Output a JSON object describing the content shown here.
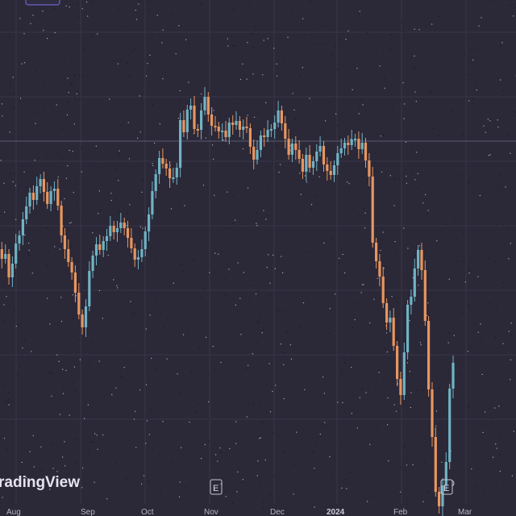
{
  "app": {
    "watermark": "radingView"
  },
  "chart_data": {
    "type": "candlestick",
    "x_labels": [
      "Aug",
      "Sep",
      "Oct",
      "Nov",
      "Dec",
      "2024",
      "Feb",
      "Mar"
    ],
    "highlight_label": "2024",
    "event_markers": [
      {
        "label": "E",
        "date": "Nov"
      },
      {
        "label": "E",
        "date": "Feb"
      }
    ],
    "colors": {
      "background": "#2b2838",
      "grid": "#3a3649",
      "up": "#6fb3c4",
      "down": "#e8965f",
      "crosshair": "#5a5870"
    },
    "grid": true,
    "ohlc_close_trend": [
      331,
      319,
      325,
      296,
      313,
      338,
      348,
      368,
      384,
      401,
      392,
      409,
      418,
      402,
      387,
      403,
      406,
      385,
      348,
      331,
      315,
      302,
      277,
      250,
      234,
      260,
      304,
      323,
      337,
      330,
      341,
      347,
      360,
      352,
      357,
      364,
      357,
      345,
      332,
      318,
      321,
      331,
      353,
      374,
      403,
      424,
      444,
      437,
      431,
      419,
      420,
      432,
      491,
      476,
      504,
      509,
      480,
      479,
      503,
      520,
      498,
      484,
      483,
      477,
      478,
      470,
      488,
      485,
      490,
      479,
      483,
      481,
      458,
      442,
      454,
      472,
      470,
      479,
      480,
      488,
      503,
      487,
      468,
      448,
      462,
      454,
      443,
      427,
      448,
      432,
      440,
      452,
      459,
      436,
      428,
      423,
      435,
      450,
      456,
      463,
      460,
      467,
      468,
      455,
      463,
      441,
      421,
      339,
      316,
      297,
      264,
      240,
      246,
      211,
      170,
      150,
      203,
      262,
      272,
      307,
      330,
      305,
      242,
      157,
      98,
      30,
      12,
      38,
      67,
      158,
      190
    ]
  }
}
